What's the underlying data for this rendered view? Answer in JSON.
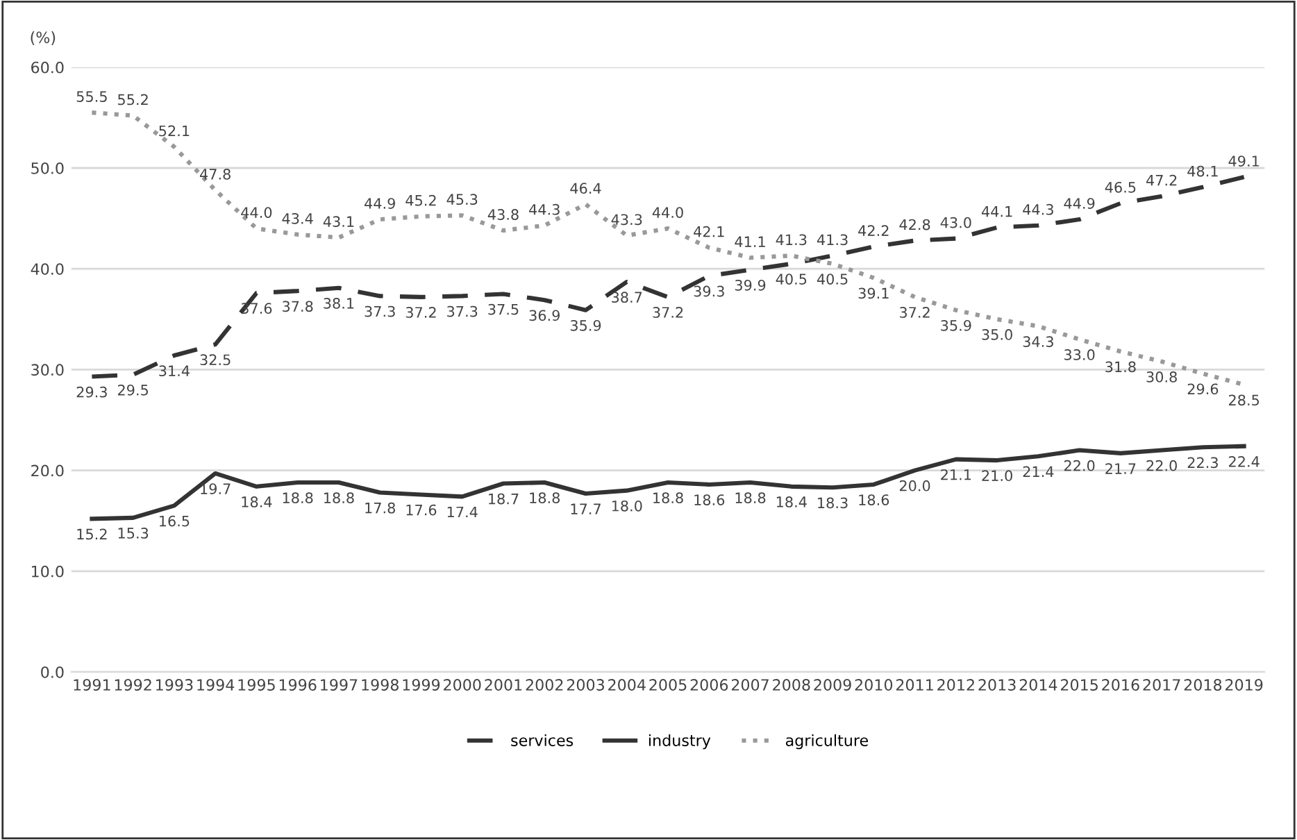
{
  "chart_data": {
    "type": "line",
    "ylabel": "(%)",
    "categories": [
      "1991",
      "1992",
      "1993",
      "1994",
      "1995",
      "1996",
      "1997",
      "1998",
      "1999",
      "2000",
      "2001",
      "2002",
      "2003",
      "2004",
      "2005",
      "2006",
      "2007",
      "2008",
      "2009",
      "2010",
      "2011",
      "2012",
      "2013",
      "2014",
      "2015",
      "2016",
      "2017",
      "2018",
      "2019"
    ],
    "series": [
      {
        "name": "services",
        "color": "#333333",
        "line_style": "dashed",
        "values": [
          29.3,
          29.5,
          31.4,
          32.5,
          37.6,
          37.8,
          38.1,
          37.3,
          37.2,
          37.3,
          37.5,
          36.9,
          35.9,
          38.7,
          37.2,
          39.3,
          39.9,
          40.5,
          41.3,
          42.2,
          42.8,
          43.0,
          44.1,
          44.3,
          44.9,
          46.5,
          47.2,
          48.1,
          49.1
        ],
        "value_labels": [
          "29.3",
          "29.5",
          "31.4",
          "32.5",
          "37.6",
          "37.8",
          "38.1",
          "37.3",
          "37.2",
          "37.3",
          "37.5",
          "36.9",
          "35.9",
          "38.7",
          "37.2",
          "39.3",
          "39.9",
          "40.5",
          "41.3",
          "42.2",
          "42.8",
          "43.0",
          "44.1",
          "44.3",
          "44.9",
          "46.5",
          "47.2",
          "48.1",
          "49.1"
        ]
      },
      {
        "name": "industry",
        "color": "#333333",
        "line_style": "solid",
        "values": [
          15.2,
          15.3,
          16.5,
          19.7,
          18.4,
          18.8,
          18.8,
          17.8,
          17.6,
          17.4,
          18.7,
          18.8,
          17.7,
          18.0,
          18.8,
          18.6,
          18.8,
          18.4,
          18.3,
          18.6,
          20.0,
          21.1,
          21.0,
          21.4,
          22.0,
          21.7,
          22.0,
          22.3,
          22.4
        ],
        "value_labels": [
          "15.2",
          "15.3",
          "16.5",
          "19.7",
          "18.4",
          "18.8",
          "18.8",
          "17.8",
          "17.6",
          "17.4",
          "18.7",
          "18.8",
          "17.7",
          "18.0",
          "18.8",
          "18.6",
          "18.8",
          "18.4",
          "18.3",
          "18.6",
          "20.0",
          "21.1",
          "21.0",
          "21.4",
          "22.0",
          "21.7",
          "22.0",
          "22.3",
          "22.4"
        ]
      },
      {
        "name": "agriculture",
        "color": "#999999",
        "line_style": "dotted",
        "values": [
          55.5,
          55.2,
          52.1,
          47.8,
          44.0,
          43.4,
          43.1,
          44.9,
          45.2,
          45.3,
          43.8,
          44.3,
          46.4,
          43.3,
          44.0,
          42.1,
          41.1,
          41.3,
          40.5,
          39.1,
          37.2,
          35.9,
          35.0,
          34.3,
          33.0,
          31.8,
          30.8,
          29.6,
          28.5
        ],
        "value_labels": [
          "55.5",
          "55.2",
          "52.1",
          "47.8",
          "44.0",
          "43.4",
          "43.1",
          "44.9",
          "45.2",
          "45.3",
          "43.8",
          "44.3",
          "46.4",
          "43.3",
          "44.0",
          "42.1",
          "41.1",
          "41.3",
          "40.5",
          "39.1",
          "37.2",
          "35.9",
          "35.0",
          "34.3",
          "33.0",
          "31.8",
          "30.8",
          "29.6",
          "28.5"
        ]
      }
    ],
    "ylim": [
      0,
      60
    ],
    "yticks": [
      {
        "value": 0,
        "label": "0.0"
      },
      {
        "value": 10,
        "label": "10.0"
      },
      {
        "value": 20,
        "label": "20.0"
      },
      {
        "value": 30,
        "label": "30.0"
      },
      {
        "value": 40,
        "label": "40.0"
      },
      {
        "value": 50,
        "label": "50.0"
      },
      {
        "value": 60,
        "label": "60.0"
      }
    ],
    "grid": "y",
    "legend": "bottom"
  }
}
